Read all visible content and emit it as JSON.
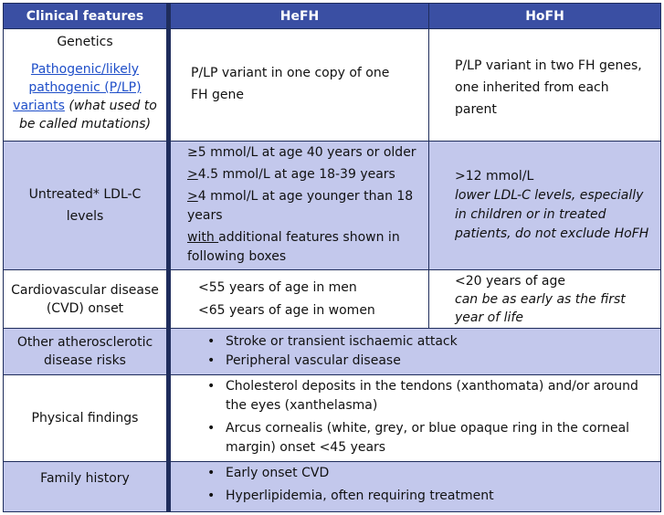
{
  "header": {
    "col1": "Clinical features",
    "col2": "HeFH",
    "col3": "HoFH"
  },
  "rows": {
    "genetics": {
      "label": "Genetics",
      "link_text": "Pathogenic/likely pathogenic (P/LP) variants",
      "link_note": "(what used to be called mutations)",
      "hefh": "P/LP variant in one copy of one FH gene",
      "hofh": "P/LP variant in two FH genes, one inherited from each parent"
    },
    "ldl": {
      "label": "Untreated* LDL-C levels",
      "hefh": {
        "line1": "≥5 mmol/L at age 40 years or older",
        "line2_sym": ">",
        "line2": "4.5 mmol/L at age 18-39 years",
        "line3_sym": ">",
        "line3": "4 mmol/L at age younger than 18 years",
        "line4_u": "with ",
        "line4": "additional features shown in following boxes"
      },
      "hofh": {
        "value": ">12 mmol/L",
        "note": "lower LDL-C levels, especially in children or in treated patients, do not exclude HoFH"
      }
    },
    "cvd": {
      "label": "Cardiovascular disease (CVD) onset",
      "hefh_men": "<55 years of age in men",
      "hefh_women": "<65 years of age in women",
      "hofh_value": "<20 years of age",
      "hofh_note": "can be as early as the first year of life"
    },
    "other": {
      "label": "Other atherosclerotic disease risks",
      "items": [
        "Stroke or transient ischaemic attack",
        "Peripheral vascular disease"
      ]
    },
    "physical": {
      "label": "Physical findings",
      "items": [
        "Cholesterol deposits in the tendons (xanthomata) and/or around the eyes (xanthelasma)",
        "Arcus cornealis (white, grey, or blue opaque ring in the corneal margin) onset <45 years"
      ]
    },
    "family": {
      "label": "Family history",
      "items": [
        "Early onset CVD",
        "Hyperlipidemia, often requiring treatment"
      ]
    }
  },
  "colors": {
    "header": "#3a4fa3",
    "shade": "#c3c8ec",
    "divider": "#1f2d5c",
    "link": "#1f4fc9"
  }
}
